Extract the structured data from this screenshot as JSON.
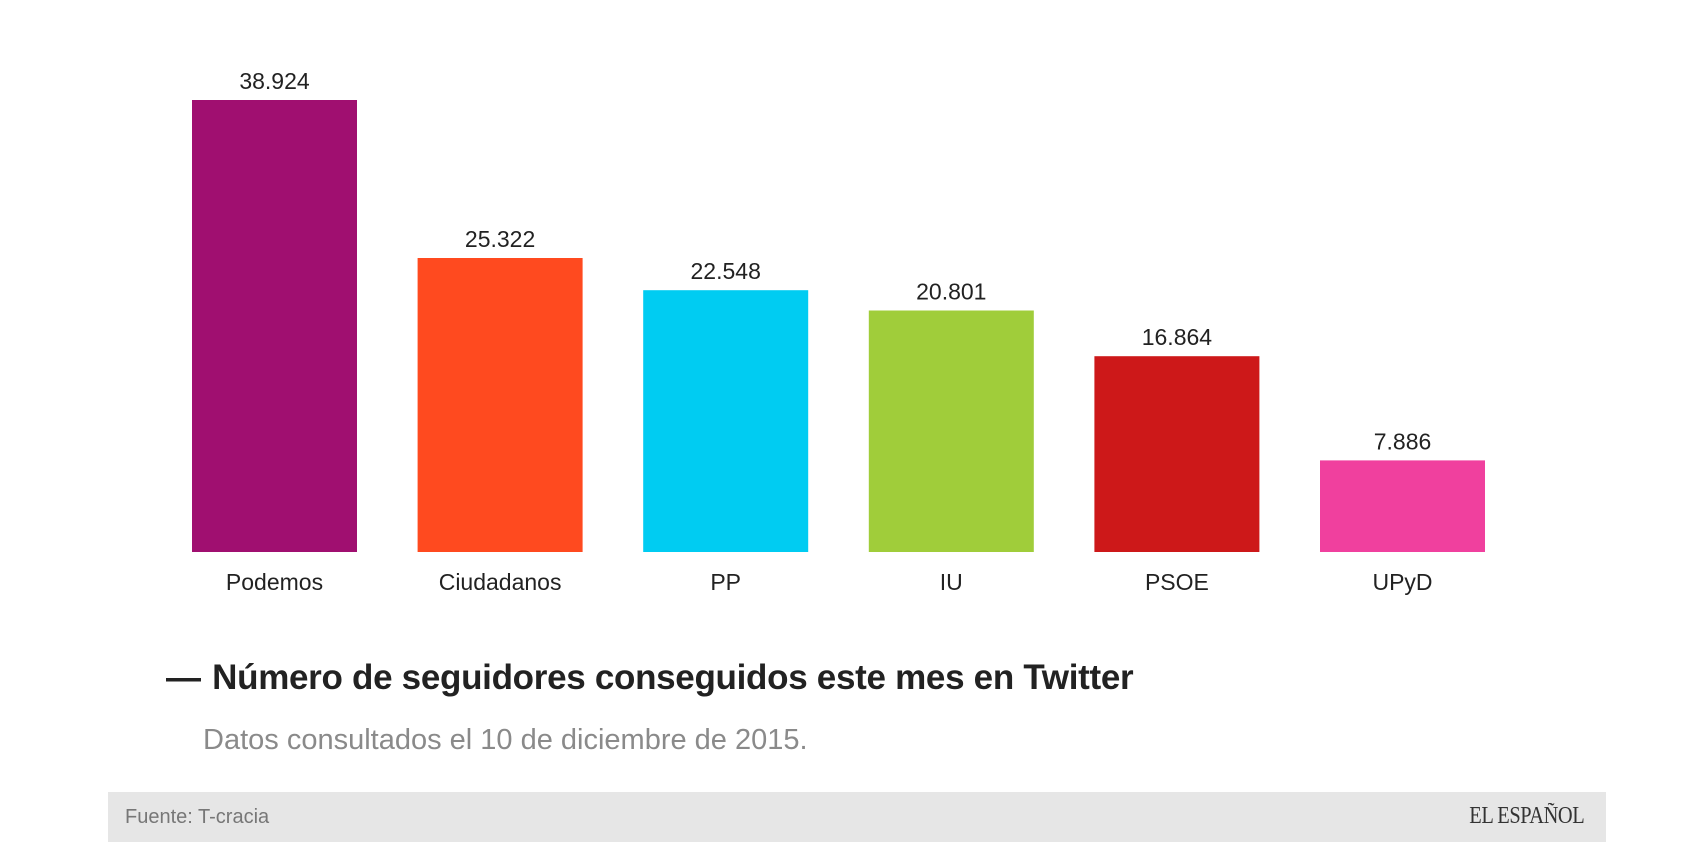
{
  "chart_data": {
    "type": "bar",
    "categories": [
      "Podemos",
      "Ciudadanos",
      "PP",
      "IU",
      "PSOE",
      "UPyD"
    ],
    "values": [
      38924,
      25322,
      22548,
      20801,
      16864,
      7886
    ],
    "value_labels": [
      "38.924",
      "25.322",
      "22.548",
      "20.801",
      "16.864",
      "7.886"
    ],
    "colors": [
      "#a00f70",
      "#ff4a1f",
      "#00ccf2",
      "#a0cd3a",
      "#cd1819",
      "#f0409e"
    ],
    "title": "Número de seguidores conseguidos este mes en Twitter",
    "subtitle": "Datos consultados el 10 de diciembre de 2015.",
    "xlabel": "",
    "ylabel": "",
    "ylim": [
      0,
      38924
    ],
    "grid": false,
    "legend": "none"
  },
  "title_dash": "—",
  "footer": {
    "source": "Fuente: T-cracia",
    "logo_text": "EL ESPAÑOL"
  }
}
